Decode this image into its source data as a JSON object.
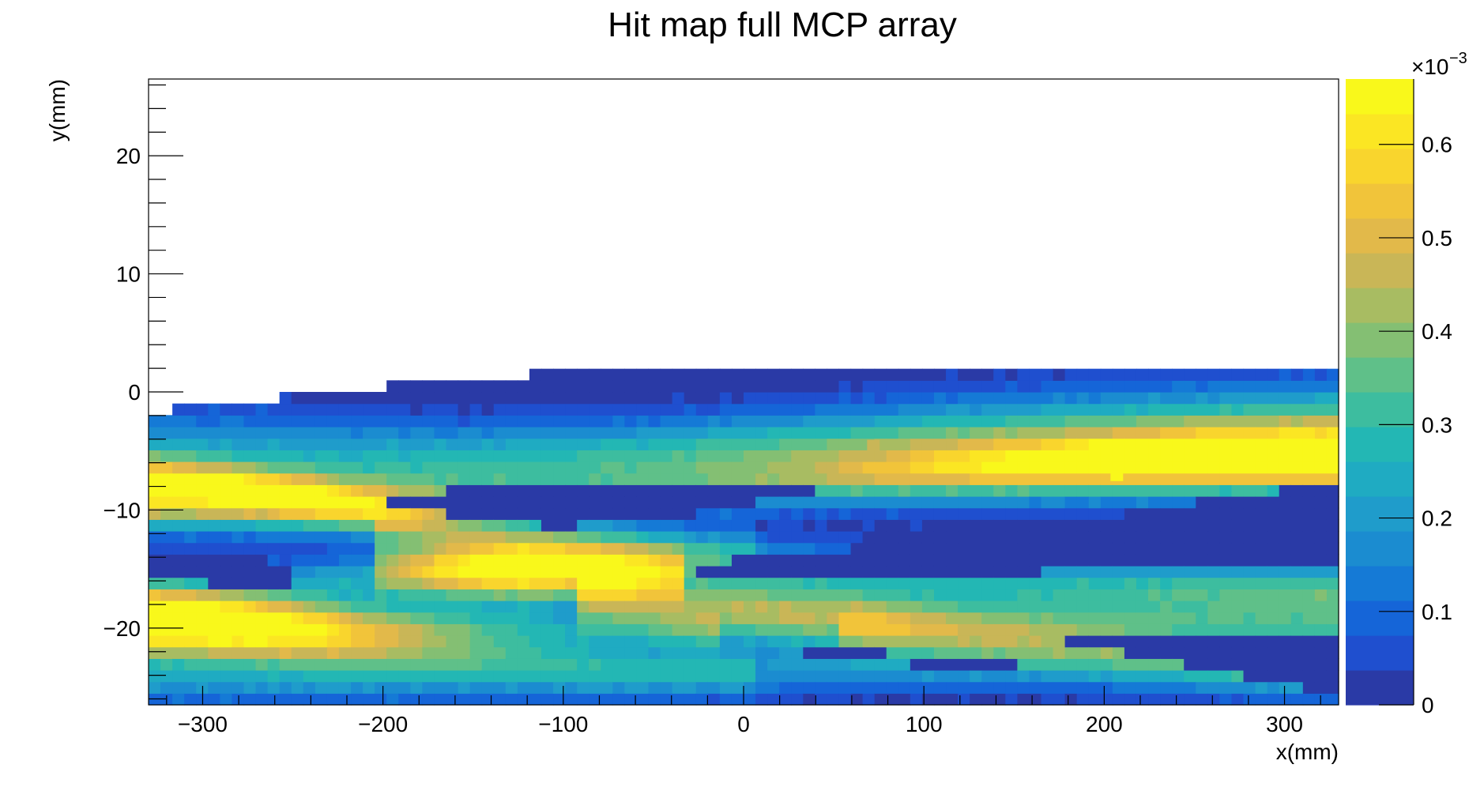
{
  "chart_data": {
    "type": "heatmap",
    "title": "Hit map full MCP array",
    "xlabel": "x(mm)",
    "ylabel": "y(mm)",
    "xlim": [
      -330,
      330
    ],
    "ylim": [
      -26.5,
      26.5
    ],
    "x_ticks": [
      -300,
      -200,
      -100,
      0,
      100,
      200,
      300
    ],
    "x_tick_labels": [
      "−300",
      "−200",
      "−100",
      "0",
      "100",
      "200",
      "300"
    ],
    "y_ticks": [
      -20,
      -10,
      0,
      10,
      20
    ],
    "y_tick_labels": [
      "−20",
      "−10",
      "0",
      "10",
      "20"
    ],
    "color_scale": {
      "min": 0,
      "max": 0.00067,
      "multiplier_label": "×10",
      "multiplier_exponent": "−3",
      "ticks": [
        0,
        0.1,
        0.2,
        0.3,
        0.4,
        0.5,
        0.6
      ],
      "tick_labels": [
        "0",
        "0.1",
        "0.2",
        "0.3",
        "0.4",
        "0.5",
        "0.6"
      ],
      "palette": [
        "#2a3aa6",
        "#1f4fcf",
        "#1565d8",
        "#157ad6",
        "#1b8cd0",
        "#1f9ccb",
        "#1fabc2",
        "#23b7b4",
        "#3dbd9f",
        "#5fc089",
        "#84bf73",
        "#a8bc62",
        "#c9b657",
        "#e2b94a",
        "#f1c43a",
        "#f9d52d",
        "#fbe623",
        "#f9f81b"
      ]
    },
    "upper_boundary": {
      "x": [
        -330,
        -307,
        -277,
        -247,
        -217,
        -187,
        -157,
        -127,
        -97,
        -67,
        -37,
        -7,
        23,
        53,
        83,
        113,
        143,
        173,
        203,
        233,
        263,
        293,
        330
      ],
      "y": [
        -1.7,
        -1.3,
        -0.8,
        -0.3,
        0.2,
        0.6,
        1.0,
        1.4,
        1.7,
        2.0,
        2.1,
        2.3,
        2.4,
        2.4,
        2.4,
        2.4,
        2.4,
        2.4,
        2.4,
        2.3,
        2.1,
        1.9,
        1.7
      ]
    },
    "bands": [
      {
        "x": [
          -330,
          -230,
          -160,
          -60,
          20,
          120,
          230,
          330
        ],
        "y": [
          -5.5,
          -5.5,
          -5.6,
          -5.3,
          -4.8,
          -4.2,
          -3.7,
          -3.4
        ],
        "w": [
          3.8,
          3.2,
          2.8,
          2.8,
          3.0,
          3.4,
          3.6,
          3.6
        ],
        "a": [
          0.2,
          0.22,
          0.24,
          0.27,
          0.3,
          0.33,
          0.36,
          0.4
        ]
      },
      {
        "x": [
          -330,
          -250,
          -180,
          -110,
          -40,
          30,
          110,
          190,
          260,
          330
        ],
        "y": [
          -9.0,
          -9.3,
          -9.3,
          -8.9,
          -8.2,
          -7.5,
          -6.8,
          -6.3,
          -6.0,
          -6.0
        ],
        "w": [
          2.4,
          2.4,
          2.3,
          2.2,
          2.2,
          2.2,
          2.3,
          2.4,
          2.5,
          2.5
        ],
        "a": [
          0.52,
          0.46,
          0.34,
          0.24,
          0.22,
          0.26,
          0.38,
          0.5,
          0.54,
          0.56
        ]
      },
      {
        "x": [
          -330,
          -260,
          -200,
          -160,
          -120,
          -80,
          -40,
          0
        ],
        "y": [
          -6.5,
          -8.5,
          -10.5,
          -11.8,
          -12.5,
          -12.8,
          -13.0,
          -13.2
        ],
        "w": [
          1.8,
          1.8,
          1.8,
          1.8,
          1.8,
          1.7,
          1.6,
          1.5
        ],
        "a": [
          0.18,
          0.22,
          0.24,
          0.22,
          0.19,
          0.16,
          0.14,
          0.12
        ]
      },
      {
        "x": [
          -200,
          -160,
          -120,
          -80,
          -40
        ],
        "y": [
          -14.0,
          -14.8,
          -15.2,
          -15.4,
          -15.6
        ],
        "w": [
          2.6,
          2.8,
          2.8,
          2.5,
          2.2
        ],
        "a": [
          0.26,
          0.34,
          0.4,
          0.34,
          0.24
        ]
      },
      {
        "x": [
          -330,
          -260,
          -200,
          -130,
          -60,
          0,
          80,
          150,
          230,
          330
        ],
        "y": [
          -16.5,
          -16.3,
          -15.8,
          -15.0,
          -14.6,
          -14.6,
          -15.3,
          -15.9,
          -16.3,
          -16.5
        ],
        "w": [
          1.8,
          1.9,
          2.0,
          2.2,
          2.2,
          2.0,
          1.9,
          1.9,
          1.9,
          1.9
        ],
        "a": [
          0.16,
          0.18,
          0.24,
          0.32,
          0.3,
          0.22,
          0.2,
          0.22,
          0.24,
          0.26
        ]
      },
      {
        "x": [
          -90,
          -30,
          0,
          40,
          80,
          130,
          200,
          260,
          330
        ],
        "y": [
          -17.5,
          -18.3,
          -18.6,
          -18.9,
          -19.1,
          -19.3,
          -19.4,
          -19.5,
          -19.5
        ],
        "w": [
          2.2,
          2.4,
          2.6,
          2.6,
          2.5,
          2.4,
          2.4,
          2.5,
          2.5
        ],
        "a": [
          0.26,
          0.38,
          0.44,
          0.44,
          0.4,
          0.32,
          0.3,
          0.3,
          0.3
        ]
      },
      {
        "x": [
          -330,
          -280,
          -230,
          -180,
          -120,
          -60,
          0
        ],
        "y": [
          -20.2,
          -20.6,
          -21.2,
          -21.8,
          -22.5,
          -23.2,
          -23.8
        ],
        "w": [
          2.6,
          2.6,
          2.4,
          2.2,
          2.0,
          1.9,
          1.8
        ],
        "a": [
          0.58,
          0.54,
          0.46,
          0.34,
          0.22,
          0.14,
          0.12
        ]
      },
      {
        "x": [
          -330,
          -260,
          -200,
          -140,
          -80,
          -20
        ],
        "y": [
          -18.5,
          -19.0,
          -19.4,
          -19.8,
          -20.2,
          -20.5
        ],
        "w": [
          2.0,
          2.0,
          1.9,
          1.8,
          1.7,
          1.6
        ],
        "a": [
          0.38,
          0.32,
          0.26,
          0.22,
          0.18,
          0.15
        ]
      },
      {
        "x": [
          -330,
          -250,
          -170,
          -90,
          -10,
          70,
          150,
          230,
          330
        ],
        "y": [
          -24.5,
          -24.5,
          -24.5,
          -24.3,
          -23.8,
          -23.2,
          -23.0,
          -23.5,
          -24.5
        ],
        "w": [
          2.0,
          2.0,
          2.0,
          2.0,
          2.0,
          2.0,
          2.0,
          2.0,
          2.0
        ],
        "a": [
          0.16,
          0.15,
          0.14,
          0.14,
          0.15,
          0.18,
          0.2,
          0.18,
          0.15
        ]
      },
      {
        "x": [
          60,
          140,
          200,
          270,
          330
        ],
        "y": [
          -20.2,
          -21.0,
          -21.8,
          -22.8,
          -23.5
        ],
        "w": [
          1.8,
          1.8,
          1.8,
          1.8,
          1.8
        ],
        "a": [
          0.16,
          0.18,
          0.18,
          0.16,
          0.14
        ]
      }
    ],
    "voids": [
      {
        "x": [
          -195,
          -150,
          -100,
          -50,
          0,
          50
        ],
        "y_top": [
          -8.6,
          -8.2,
          -7.8,
          -7.6,
          -7.5,
          -7.4
        ],
        "y_bottom": [
          -9.4,
          -10.8,
          -11.4,
          -10.8,
          -9.6,
          -8.0
        ]
      },
      {
        "x": [
          -30,
          30,
          100,
          170,
          240,
          300,
          330
        ],
        "y_top": [
          -14.5,
          -13.8,
          -12.6,
          -11.2,
          -9.6,
          -8.2,
          -7.8
        ],
        "y_bottom": [
          -15.2,
          -15.4,
          -15.4,
          -15.2,
          -15.0,
          -14.9,
          -14.9
        ]
      },
      {
        "x": [
          -330,
          -290,
          -250
        ],
        "y_top": [
          -13.4,
          -13.6,
          -14.6
        ],
        "y_bottom": [
          -15.4,
          -16.4,
          -16.4
        ]
      },
      {
        "x": [
          180,
          240,
          290,
          330
        ],
        "y_top": [
          -20.4,
          -20.6,
          -20.2,
          -20.2
        ],
        "y_bottom": [
          -21.2,
          -23.0,
          -24.5,
          -25.5
        ]
      },
      {
        "x": [
          30,
          100,
          150
        ],
        "y_top": [
          -21.8,
          -22.2,
          -22.8
        ],
        "y_bottom": [
          -22.3,
          -23.2,
          -23.8
        ]
      }
    ],
    "hot_pixels": [
      {
        "x": 72,
        "y": -4.5,
        "value": 0.00048
      },
      {
        "x": 207,
        "y": -7.1,
        "value": 0.00067
      }
    ]
  }
}
